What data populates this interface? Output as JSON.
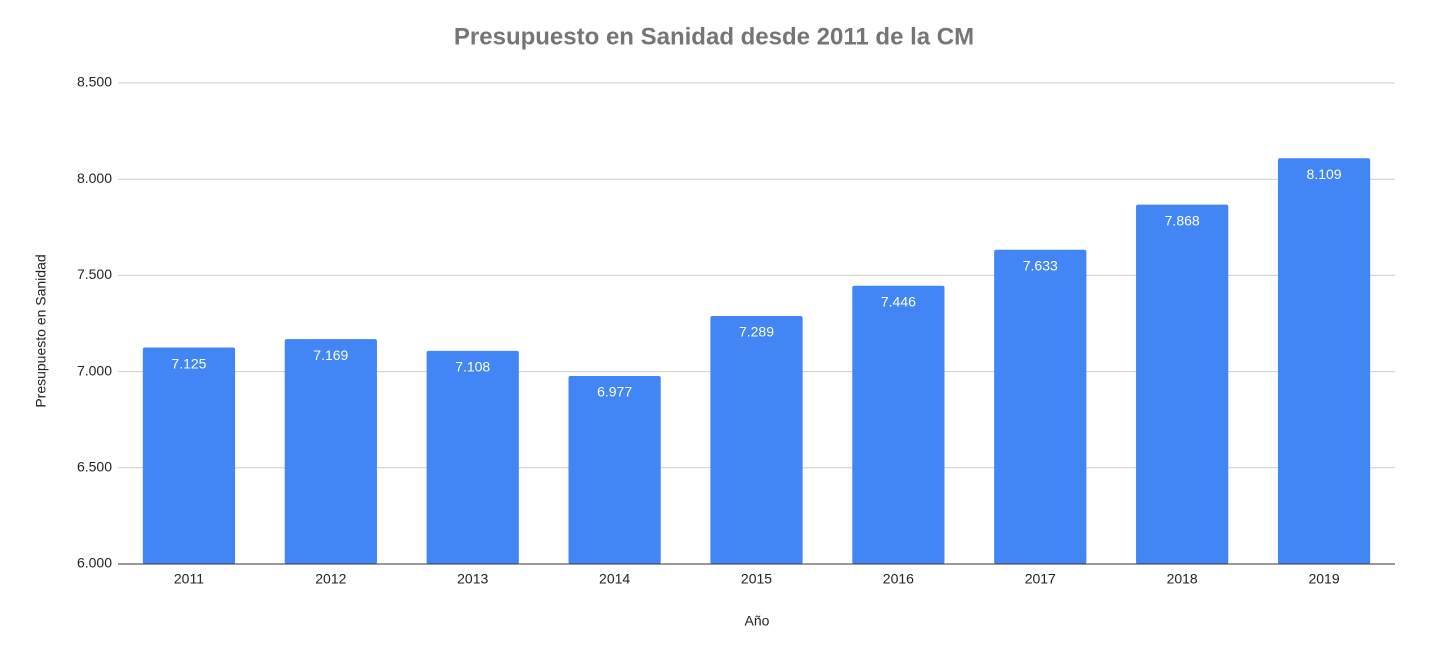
{
  "chart_data": {
    "type": "bar",
    "title": "Presupuesto en Sanidad desde 2011 de la CM",
    "x_label": "Año",
    "y_label": "Presupuesto en Sanidad",
    "categories": [
      "2011",
      "2012",
      "2013",
      "2014",
      "2015",
      "2016",
      "2017",
      "2018",
      "2019"
    ],
    "values": [
      7125,
      7169,
      7108,
      6977,
      7289,
      7446,
      7633,
      7868,
      8109
    ],
    "value_labels": [
      "7.125",
      "7.169",
      "7.108",
      "6.977",
      "7.289",
      "7.446",
      "7.633",
      "7.868",
      "8.109"
    ],
    "color": "#4285f4",
    "ylim": [
      6000,
      8500
    ],
    "yticks": [
      {
        "value": 6000,
        "label": "6.000"
      },
      {
        "value": 6500,
        "label": "6.500"
      },
      {
        "value": 7000,
        "label": "7.000"
      },
      {
        "value": 7500,
        "label": "7.500"
      },
      {
        "value": 8000,
        "label": "8.000"
      },
      {
        "value": 8500,
        "label": "8.500"
      }
    ],
    "grid": true
  }
}
